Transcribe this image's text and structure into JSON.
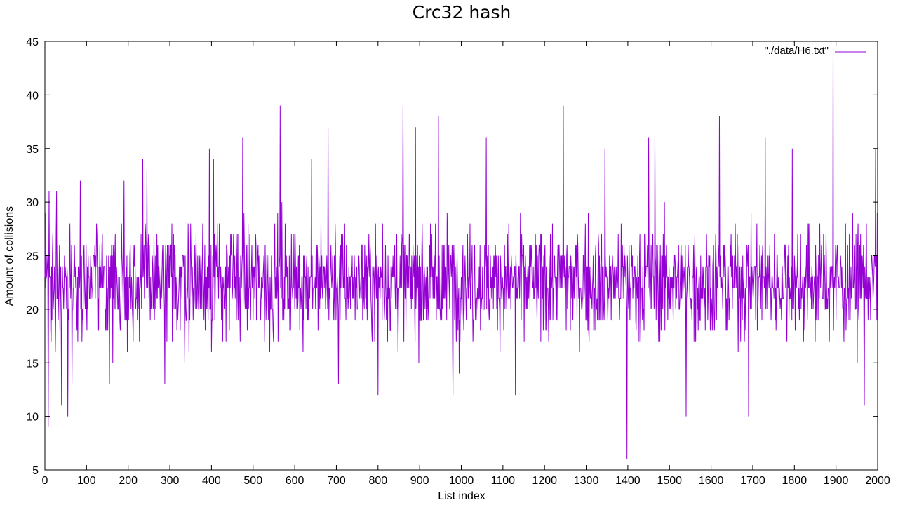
{
  "chart_data": {
    "type": "line",
    "title": "Crc32 hash",
    "xlabel": "List index",
    "ylabel": "Amount of collisions",
    "xlim": [
      0,
      2000
    ],
    "ylim": [
      5,
      45
    ],
    "x_ticks": [
      "0",
      "100",
      "200",
      "300",
      "400",
      "500",
      "600",
      "700",
      "800",
      "900",
      "1000",
      "1100",
      "1200",
      "1300",
      "1400",
      "1500",
      "1600",
      "1700",
      "1800",
      "1900",
      "2000"
    ],
    "y_ticks": [
      "5",
      "10",
      "15",
      "20",
      "25",
      "30",
      "35",
      "40",
      "45"
    ],
    "grid": false,
    "legend_position": "top-right",
    "series": [
      {
        "name": "\"./data/H6.txt\"",
        "color": "#9400d3",
        "mean": 22.6,
        "min": 6,
        "max": 44,
        "notable_points": [
          {
            "x": 0,
            "y": 23
          },
          {
            "x": 8,
            "y": 9
          },
          {
            "x": 10,
            "y": 31
          },
          {
            "x": 28,
            "y": 31
          },
          {
            "x": 40,
            "y": 11
          },
          {
            "x": 55,
            "y": 10
          },
          {
            "x": 65,
            "y": 13
          },
          {
            "x": 85,
            "y": 32
          },
          {
            "x": 155,
            "y": 13
          },
          {
            "x": 190,
            "y": 32
          },
          {
            "x": 235,
            "y": 34
          },
          {
            "x": 245,
            "y": 33
          },
          {
            "x": 288,
            "y": 13
          },
          {
            "x": 395,
            "y": 35
          },
          {
            "x": 405,
            "y": 34
          },
          {
            "x": 475,
            "y": 36
          },
          {
            "x": 565,
            "y": 39
          },
          {
            "x": 640,
            "y": 34
          },
          {
            "x": 680,
            "y": 37
          },
          {
            "x": 705,
            "y": 13
          },
          {
            "x": 800,
            "y": 12
          },
          {
            "x": 860,
            "y": 39
          },
          {
            "x": 890,
            "y": 37
          },
          {
            "x": 945,
            "y": 38
          },
          {
            "x": 980,
            "y": 12
          },
          {
            "x": 1060,
            "y": 36
          },
          {
            "x": 1130,
            "y": 12
          },
          {
            "x": 1245,
            "y": 39
          },
          {
            "x": 1345,
            "y": 35
          },
          {
            "x": 1398,
            "y": 6
          },
          {
            "x": 1450,
            "y": 36
          },
          {
            "x": 1465,
            "y": 36
          },
          {
            "x": 1540,
            "y": 10
          },
          {
            "x": 1620,
            "y": 38
          },
          {
            "x": 1690,
            "y": 10
          },
          {
            "x": 1730,
            "y": 36
          },
          {
            "x": 1795,
            "y": 35
          },
          {
            "x": 1893,
            "y": 44
          },
          {
            "x": 1968,
            "y": 11
          },
          {
            "x": 1995,
            "y": 35
          }
        ]
      }
    ]
  }
}
